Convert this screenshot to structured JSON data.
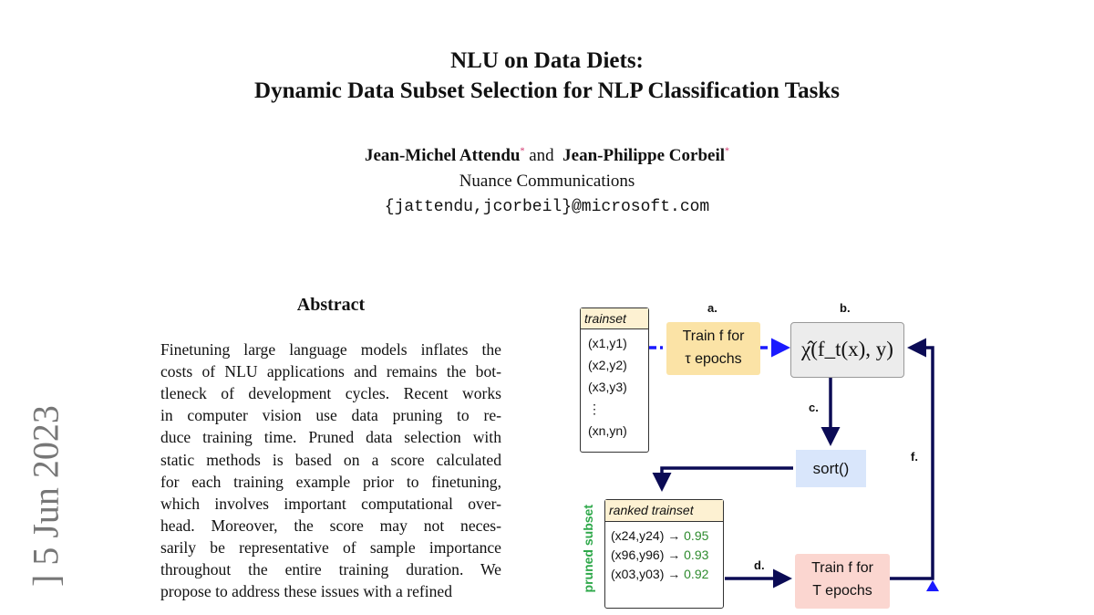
{
  "title": {
    "line1": "NLU on Data Diets:",
    "line2": "Dynamic Data Subset Selection for NLP Classification Tasks"
  },
  "authors": [
    {
      "name": "Jean-Michel Attendu",
      "mark": "*"
    },
    {
      "name": "Jean-Philippe Corbeil",
      "mark": "*"
    }
  ],
  "authors_joiner": "and",
  "affiliation": "Nuance Communications",
  "email": "{jattendu,jcorbeil}@microsoft.com",
  "arxiv_stamp": "] 5 Jun 2023",
  "abstract": {
    "heading": "Abstract",
    "lines": [
      "Finetuning large language models inflates the",
      "costs of NLU applications and remains the bot-",
      "tleneck of development cycles. Recent works",
      "in computer vision use data pruning to re-",
      "duce training time. Pruned data selection with",
      "static methods is based on a score calculated",
      "for each training example prior to finetuning,",
      "which involves important computational over-",
      "head.  Moreover, the score may not neces-",
      "sarily be representative of sample importance",
      "throughout the entire training duration.  We",
      "propose to address these issues with a refined"
    ]
  },
  "figure": {
    "step_labels": {
      "a": "a.",
      "b": "b.",
      "c": "c.",
      "d": "d.",
      "f": "f."
    },
    "trainset": {
      "header": "trainset",
      "items": [
        "(x1,y1)",
        "(x2,y2)",
        "(x3,y3)",
        "⋮",
        "(xn,yn)"
      ]
    },
    "train_tau": {
      "line1": "Train f for",
      "line2": "τ epochs"
    },
    "score_fn": "χ̂(f_t(x), y)",
    "sort": "sort()",
    "ranked": {
      "header": "ranked trainset",
      "items": [
        {
          "pair": "(x24,y24)",
          "score": "0.95"
        },
        {
          "pair": "(x96,y96)",
          "score": "0.93"
        },
        {
          "pair": "(x03,y03)",
          "score": "0.92"
        }
      ]
    },
    "side_label": "pruned subset",
    "train_T": {
      "line1": "Train f for",
      "line2": "T epochs"
    },
    "colors": {
      "yellow": "#fbe3a6",
      "gray": "#ececec",
      "blue_box": "#d9e6fb",
      "red_box": "#fbd6d0",
      "navy": "#0b0b55",
      "dash_blue": "#1a1aff",
      "green": "#2e8b2e",
      "header": "#fdf1d2"
    }
  }
}
